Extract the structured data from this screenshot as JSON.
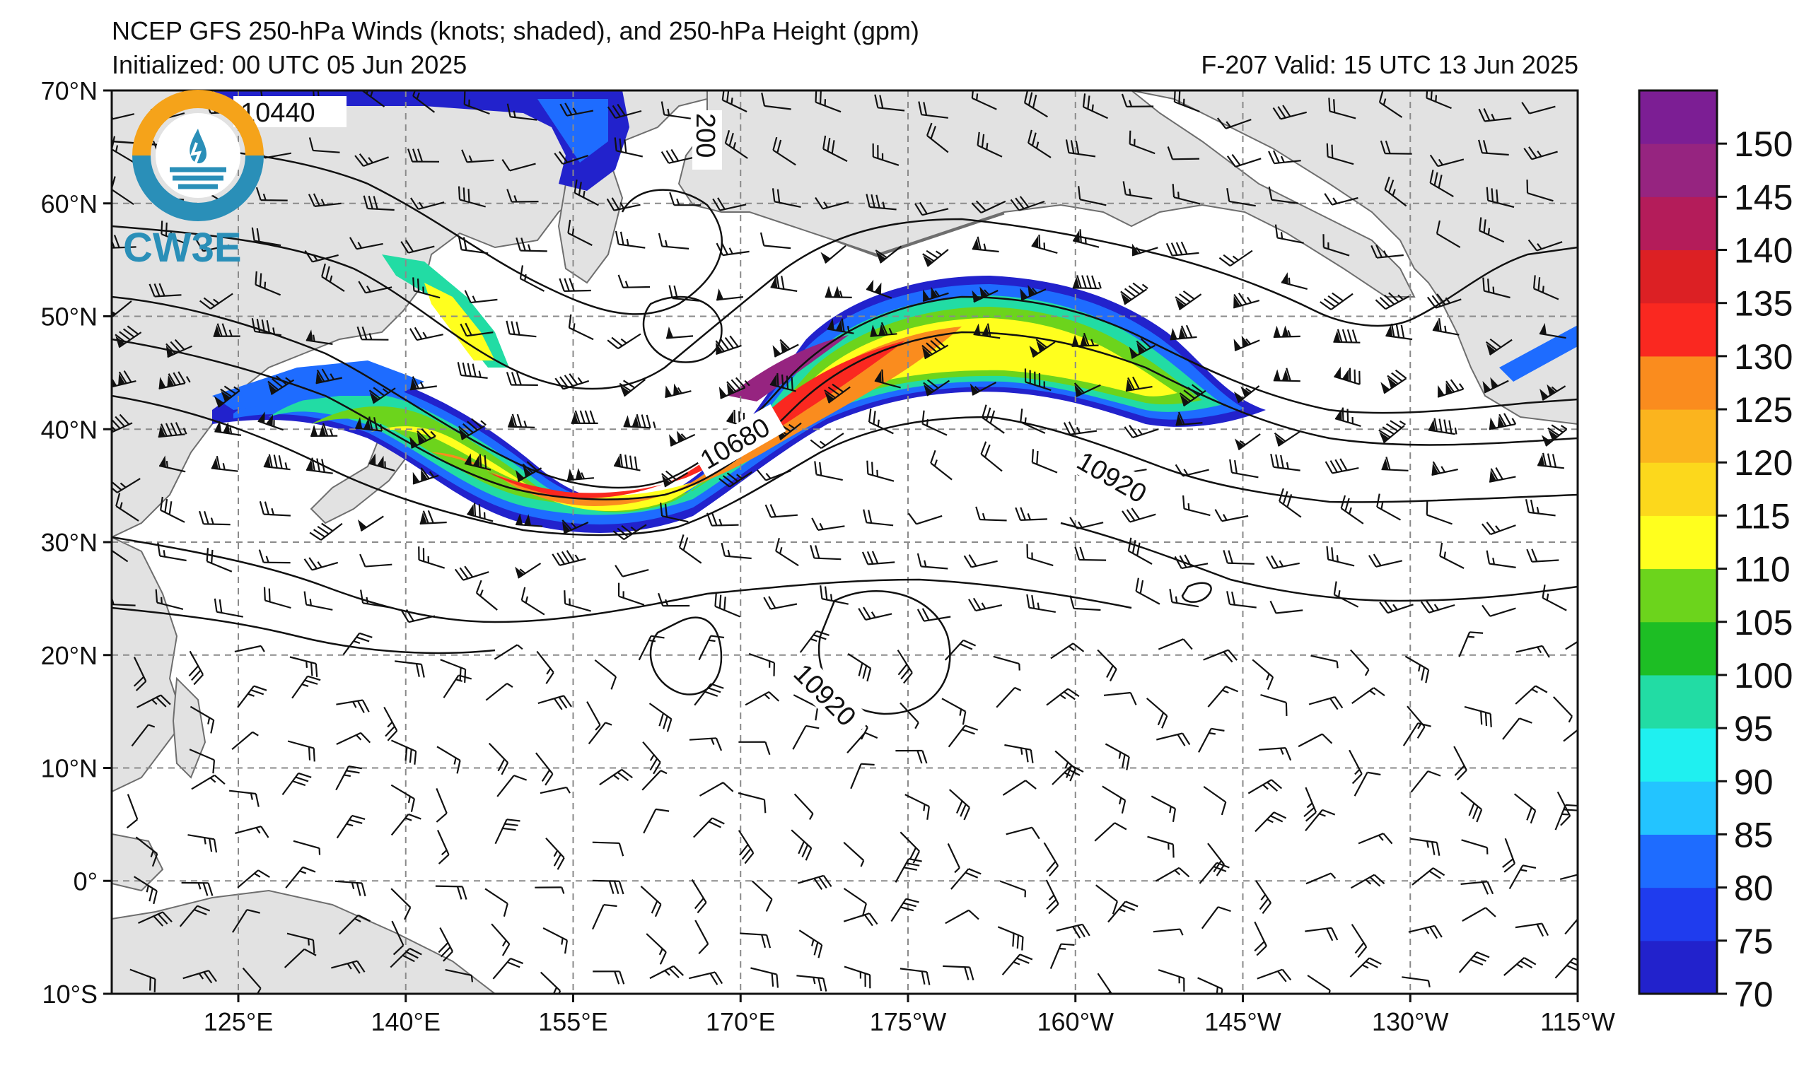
{
  "header": {
    "title": "NCEP GFS 250-hPa Winds (knots; shaded), and 250-hPa Height (gpm)",
    "initialized": "Initialized: 00 UTC 05 Jun 2025",
    "valid": "F-207  Valid: 15 UTC 13 Jun 2025"
  },
  "map": {
    "lat_labels": [
      "70°N",
      "60°N",
      "50°N",
      "40°N",
      "30°N",
      "20°N",
      "10°N",
      "0°",
      "10°S"
    ],
    "lon_labels": [
      "125°E",
      "140°E",
      "155°E",
      "170°E",
      "175°W",
      "160°W",
      "145°W",
      "130°W",
      "115°W"
    ],
    "land_color": "#e2e2e2",
    "coast_color": "#6e6e6e",
    "contour_labels": [
      "10440",
      "200",
      "10680",
      "10920",
      "10920"
    ]
  },
  "jet_isotachs_knots": [
    70,
    75,
    80,
    85,
    90,
    95,
    100,
    105,
    110,
    120,
    125,
    130,
    135,
    140,
    145,
    150
  ],
  "colorbar": {
    "tick_labels": [
      "70",
      "75",
      "80",
      "85",
      "90",
      "95",
      "100",
      "105",
      "110",
      "115",
      "120",
      "125",
      "130",
      "135",
      "140",
      "145",
      "150"
    ],
    "colors": [
      "#2222cc",
      "#1f3cee",
      "#1e6cff",
      "#23c4ff",
      "#1ff0f0",
      "#22dca4",
      "#1dbe24",
      "#6cd41c",
      "#ffff1e",
      "#fcd81c",
      "#fbb41e",
      "#fa8c1e",
      "#fa2820",
      "#dc2024",
      "#b41c5a",
      "#962480",
      "#7c1e94"
    ]
  },
  "logo": {
    "text": "CW3E",
    "ring_top": "#f5a31a",
    "ring_bottom": "#2a8fb8"
  }
}
